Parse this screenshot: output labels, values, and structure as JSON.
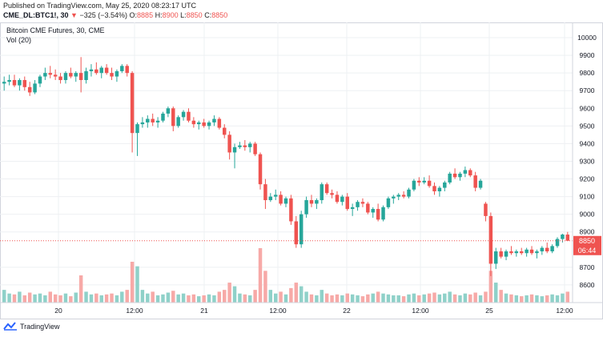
{
  "header": {
    "published": "Published on TradingView.com, May 25, 2020 08:23:17 UTC",
    "symbol": "CME_DL:BTC1!, 30",
    "change_arrow": "▼",
    "change": "−325 (−3.54%)",
    "o_label": "O:",
    "o_value": "8885",
    "h_label": "H:",
    "h_value": "8900",
    "l_label": "L:",
    "l_value": "8850",
    "c_label": "C:",
    "c_value": "8850",
    "last_value": "8850"
  },
  "legend": {
    "title": "Bitcoin CME Futures, 30, CME",
    "vol": "Vol (20)"
  },
  "price_tag": {
    "value": "8850",
    "countdown": "06:44"
  },
  "footer": {
    "brand": "TradingView"
  },
  "colors": {
    "up": "#26a69a",
    "down": "#ef5350",
    "vol_up": "#8fd1c9",
    "vol_down": "#f7a9a7",
    "grid": "#eef0f3"
  },
  "chart_data": {
    "type": "candlestick",
    "title": "Bitcoin CME Futures, 30, CME",
    "interval": "30",
    "y_axis": {
      "min": 8500,
      "max": 10050,
      "ticks": [
        10000,
        9900,
        9800,
        9700,
        9600,
        9500,
        9400,
        9300,
        9200,
        9100,
        9000,
        8900,
        8700,
        8600
      ]
    },
    "x_axis": {
      "ticks": [
        "20",
        "12:00",
        "21",
        "12:00",
        "22",
        "12:00",
        "25",
        "12:00"
      ]
    },
    "last_price": 8850,
    "candles": [
      [
        9740,
        9780,
        9700,
        9750,
        14
      ],
      [
        9750,
        9790,
        9730,
        9760,
        10
      ],
      [
        9760,
        9790,
        9720,
        9730,
        9
      ],
      [
        9730,
        9770,
        9700,
        9760,
        12
      ],
      [
        9760,
        9780,
        9700,
        9720,
        8
      ],
      [
        9720,
        9750,
        9670,
        9690,
        11
      ],
      [
        9690,
        9760,
        9680,
        9740,
        9
      ],
      [
        9740,
        9790,
        9720,
        9780,
        10
      ],
      [
        9780,
        9830,
        9760,
        9800,
        8
      ],
      [
        9800,
        9840,
        9770,
        9790,
        12
      ],
      [
        9790,
        9820,
        9760,
        9780,
        9
      ],
      [
        9780,
        9800,
        9740,
        9760,
        8
      ],
      [
        9760,
        9810,
        9740,
        9800,
        10
      ],
      [
        9800,
        9830,
        9770,
        9780,
        7
      ],
      [
        9780,
        9810,
        9750,
        9800,
        11
      ],
      [
        9800,
        9890,
        9690,
        9760,
        30
      ],
      [
        9760,
        9830,
        9740,
        9810,
        12
      ],
      [
        9810,
        9850,
        9780,
        9820,
        9
      ],
      [
        9820,
        9860,
        9790,
        9800,
        10
      ],
      [
        9800,
        9840,
        9770,
        9830,
        8
      ],
      [
        9830,
        9850,
        9790,
        9800,
        9
      ],
      [
        9800,
        9830,
        9760,
        9780,
        10
      ],
      [
        9780,
        9820,
        9750,
        9810,
        8
      ],
      [
        9810,
        9850,
        9800,
        9840,
        12
      ],
      [
        9840,
        9850,
        9780,
        9800,
        14
      ],
      [
        9800,
        9810,
        9350,
        9460,
        45
      ],
      [
        9460,
        9520,
        9330,
        9510,
        40
      ],
      [
        9510,
        9550,
        9490,
        9520,
        14
      ],
      [
        9520,
        9560,
        9490,
        9540,
        10
      ],
      [
        9540,
        9570,
        9500,
        9520,
        12
      ],
      [
        9520,
        9550,
        9490,
        9530,
        8
      ],
      [
        9530,
        9580,
        9520,
        9570,
        9
      ],
      [
        9570,
        9610,
        9550,
        9600,
        11
      ],
      [
        9600,
        9610,
        9470,
        9500,
        13
      ],
      [
        9500,
        9560,
        9490,
        9550,
        9
      ],
      [
        9550,
        9590,
        9530,
        9580,
        10
      ],
      [
        9580,
        9600,
        9520,
        9530,
        8
      ],
      [
        9530,
        9550,
        9490,
        9510,
        9
      ],
      [
        9510,
        9530,
        9480,
        9520,
        7
      ],
      [
        9520,
        9540,
        9490,
        9500,
        8
      ],
      [
        9500,
        9530,
        9480,
        9520,
        9
      ],
      [
        9520,
        9560,
        9500,
        9540,
        8
      ],
      [
        9540,
        9550,
        9480,
        9490,
        12
      ],
      [
        9490,
        9510,
        9430,
        9450,
        14
      ],
      [
        9450,
        9470,
        9310,
        9350,
        22
      ],
      [
        9350,
        9400,
        9260,
        9380,
        18
      ],
      [
        9380,
        9410,
        9370,
        9390,
        10
      ],
      [
        9390,
        9420,
        9360,
        9380,
        9
      ],
      [
        9380,
        9410,
        9350,
        9400,
        8
      ],
      [
        9400,
        9410,
        9330,
        9340,
        14
      ],
      [
        9340,
        9350,
        9140,
        9170,
        60
      ],
      [
        9170,
        9200,
        9030,
        9080,
        35
      ],
      [
        9080,
        9120,
        9070,
        9100,
        14
      ],
      [
        9100,
        9140,
        9080,
        9110,
        10
      ],
      [
        9110,
        9130,
        9050,
        9060,
        12
      ],
      [
        9060,
        9100,
        9040,
        9090,
        9
      ],
      [
        9090,
        9110,
        8940,
        8960,
        16
      ],
      [
        8960,
        8990,
        8810,
        8830,
        22
      ],
      [
        8830,
        9020,
        8810,
        9000,
        18
      ],
      [
        9000,
        9100,
        8980,
        9080,
        12
      ],
      [
        9080,
        9110,
        9040,
        9060,
        9
      ],
      [
        9060,
        9090,
        9030,
        9080,
        8
      ],
      [
        9080,
        9180,
        9060,
        9170,
        14
      ],
      [
        9170,
        9180,
        9110,
        9120,
        10
      ],
      [
        9120,
        9140,
        9090,
        9110,
        8
      ],
      [
        9110,
        9130,
        9060,
        9070,
        9
      ],
      [
        9070,
        9110,
        9050,
        9100,
        8
      ],
      [
        9100,
        9120,
        9020,
        9030,
        10
      ],
      [
        9030,
        9060,
        8990,
        9040,
        9
      ],
      [
        9040,
        9080,
        9020,
        9070,
        8
      ],
      [
        9070,
        9090,
        9040,
        9060,
        7
      ],
      [
        9060,
        9070,
        9000,
        9010,
        9
      ],
      [
        9010,
        9040,
        8980,
        9030,
        10
      ],
      [
        9030,
        9060,
        8960,
        8970,
        12
      ],
      [
        8970,
        9050,
        8960,
        9040,
        10
      ],
      [
        9040,
        9100,
        9030,
        9090,
        9
      ],
      [
        9090,
        9110,
        9060,
        9100,
        8
      ],
      [
        9100,
        9120,
        9080,
        9110,
        8
      ],
      [
        9110,
        9130,
        9090,
        9100,
        7
      ],
      [
        9100,
        9150,
        9090,
        9140,
        9
      ],
      [
        9140,
        9200,
        9130,
        9190,
        10
      ],
      [
        9190,
        9210,
        9160,
        9180,
        8
      ],
      [
        9180,
        9210,
        9170,
        9190,
        9
      ],
      [
        9190,
        9220,
        9150,
        9160,
        10
      ],
      [
        9160,
        9180,
        9110,
        9130,
        11
      ],
      [
        9130,
        9160,
        9100,
        9150,
        9
      ],
      [
        9150,
        9190,
        9130,
        9180,
        10
      ],
      [
        9180,
        9240,
        9170,
        9230,
        12
      ],
      [
        9230,
        9260,
        9200,
        9210,
        9
      ],
      [
        9210,
        9240,
        9190,
        9230,
        8
      ],
      [
        9230,
        9270,
        9210,
        9250,
        10
      ],
      [
        9250,
        9260,
        9210,
        9220,
        9
      ],
      [
        9220,
        9240,
        9130,
        9150,
        11
      ],
      [
        9150,
        9200,
        9140,
        9190,
        8
      ],
      [
        9060,
        9070,
        8960,
        8990,
        12
      ],
      [
        8990,
        9010,
        8650,
        8720,
        35
      ],
      [
        8720,
        8810,
        8690,
        8790,
        22
      ],
      [
        8790,
        8810,
        8750,
        8760,
        14
      ],
      [
        8760,
        8800,
        8740,
        8790,
        10
      ],
      [
        8790,
        8820,
        8770,
        8780,
        9
      ],
      [
        8780,
        8800,
        8760,
        8790,
        8
      ],
      [
        8790,
        8810,
        8770,
        8780,
        7
      ],
      [
        8780,
        8810,
        8760,
        8800,
        8
      ],
      [
        8800,
        8820,
        8770,
        8780,
        9
      ],
      [
        8780,
        8800,
        8750,
        8790,
        8
      ],
      [
        8790,
        8820,
        8770,
        8810,
        7
      ],
      [
        8810,
        8840,
        8780,
        8790,
        8
      ],
      [
        8790,
        8830,
        8780,
        8820,
        9
      ],
      [
        8820,
        8870,
        8810,
        8860,
        8
      ],
      [
        8860,
        8890,
        8840,
        8885,
        10
      ],
      [
        8885,
        8900,
        8850,
        8850,
        12
      ]
    ]
  }
}
